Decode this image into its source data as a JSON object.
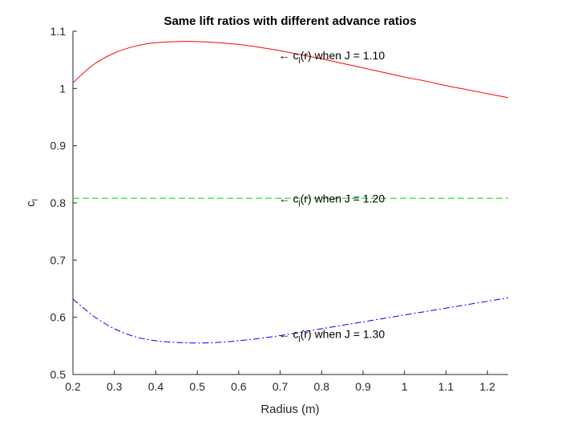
{
  "chart_data": {
    "type": "line",
    "title": "Same lift ratios with different advance ratios",
    "xlabel": "Radius (m)",
    "ylabel": {
      "main": "c",
      "sub": "l"
    },
    "xlim": [
      0.2,
      1.25
    ],
    "ylim": [
      0.5,
      1.1
    ],
    "xticks": [
      0.2,
      0.3,
      0.4,
      0.5,
      0.6,
      0.7,
      0.8,
      0.9,
      1,
      1.1,
      1.2
    ],
    "xtick_labels": [
      "0.2",
      "0.3",
      "0.4",
      "0.5",
      "0.6",
      "0.7",
      "0.8",
      "0.9",
      "1",
      "1.1",
      "1.2"
    ],
    "yticks": [
      0.5,
      0.6,
      0.7,
      0.8,
      0.9,
      1.0,
      1.1
    ],
    "ytick_labels": [
      "0.5",
      "0.6",
      "0.7",
      "0.8",
      "0.9",
      "1",
      "1.1"
    ],
    "grid": false,
    "x": [
      0.2,
      0.25,
      0.3,
      0.35,
      0.4,
      0.45,
      0.5,
      0.55,
      0.6,
      0.65,
      0.7,
      0.75,
      0.8,
      0.85,
      0.9,
      0.95,
      1.0,
      1.05,
      1.1,
      1.15,
      1.2,
      1.25
    ],
    "series": [
      {
        "color": "#ff0000",
        "dash": "solid",
        "values": [
          1.01,
          1.042,
          1.062,
          1.074,
          1.08,
          1.082,
          1.082,
          1.08,
          1.077,
          1.072,
          1.066,
          1.059,
          1.052,
          1.044,
          1.036,
          1.028,
          1.02,
          1.013,
          1.005,
          0.998,
          0.991,
          0.984
        ]
      },
      {
        "color": "#00dd00",
        "dash": "dashed",
        "values": [
          0.808,
          0.808,
          0.808,
          0.808,
          0.808,
          0.808,
          0.808,
          0.808,
          0.808,
          0.808,
          0.808,
          0.808,
          0.808,
          0.808,
          0.808,
          0.808,
          0.808,
          0.808,
          0.808,
          0.808,
          0.808,
          0.808
        ]
      },
      {
        "color": "#0000ff",
        "dash": "dashdot",
        "values": [
          0.632,
          0.602,
          0.58,
          0.566,
          0.559,
          0.556,
          0.555,
          0.556,
          0.559,
          0.563,
          0.568,
          0.574,
          0.58,
          0.586,
          0.592,
          0.598,
          0.604,
          0.61,
          0.616,
          0.622,
          0.628,
          0.634
        ]
      }
    ],
    "annotations": [
      {
        "x": 0.7,
        "y": 1.058,
        "arrow": "←",
        "pre": "c",
        "sub": "l",
        "post": "(r) when J = 1.10"
      },
      {
        "x": 0.7,
        "y": 0.808,
        "arrow": "←",
        "pre": "c",
        "sub": "l",
        "post": "(r) when J = 1.20"
      },
      {
        "x": 0.7,
        "y": 0.571,
        "arrow": "←",
        "pre": "c",
        "sub": "l",
        "post": "(r) when J = 1.30"
      }
    ]
  }
}
